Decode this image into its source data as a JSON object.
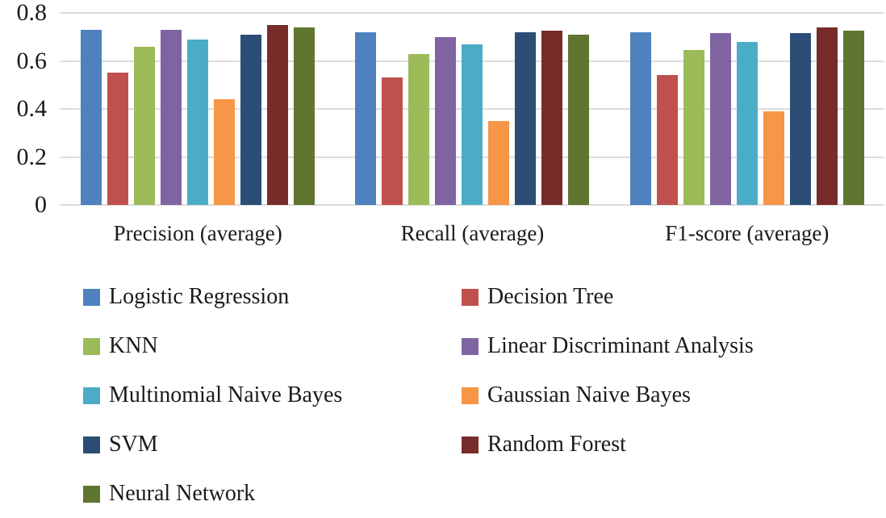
{
  "figure": {
    "background": "#ffffff",
    "grid_color": "#dcdcdc",
    "text_color": "#1a1a1a"
  },
  "chart_data": {
    "type": "bar",
    "title": "",
    "xlabel": "",
    "ylabel": "",
    "ylim": [
      0,
      0.8
    ],
    "grid": true,
    "legend_position": "bottom, two columns",
    "yticks": [
      0.8,
      0.6,
      0.4,
      0.2,
      0
    ],
    "ytick_labels": [
      "0.8",
      "0.6",
      "0.4",
      "0.2",
      "0"
    ],
    "categories": [
      "Precision (average)",
      "Recall (average)",
      "F1-score (average)"
    ],
    "series": [
      {
        "name": "Logistic Regression",
        "color": "#4e81bd",
        "values": [
          0.73,
          0.72,
          0.72
        ]
      },
      {
        "name": "Decision Tree",
        "color": "#c0504d",
        "values": [
          0.55,
          0.53,
          0.54
        ]
      },
      {
        "name": "KNN",
        "color": "#9bbb59",
        "values": [
          0.66,
          0.63,
          0.645
        ]
      },
      {
        "name": "Linear Discriminant Analysis",
        "color": "#8064a2",
        "values": [
          0.73,
          0.7,
          0.715
        ]
      },
      {
        "name": "Multinomial Naive Bayes",
        "color": "#4bacc6",
        "values": [
          0.69,
          0.67,
          0.68
        ]
      },
      {
        "name": "Gaussian Naive Bayes",
        "color": "#f79646",
        "values": [
          0.44,
          0.35,
          0.39
        ]
      },
      {
        "name": "SVM",
        "color": "#2c4d75",
        "values": [
          0.71,
          0.72,
          0.715
        ]
      },
      {
        "name": "Random Forest",
        "color": "#772c2a",
        "values": [
          0.75,
          0.725,
          0.74
        ]
      },
      {
        "name": "Neural Network",
        "color": "#5f7530",
        "values": [
          0.74,
          0.71,
          0.725
        ]
      }
    ]
  }
}
